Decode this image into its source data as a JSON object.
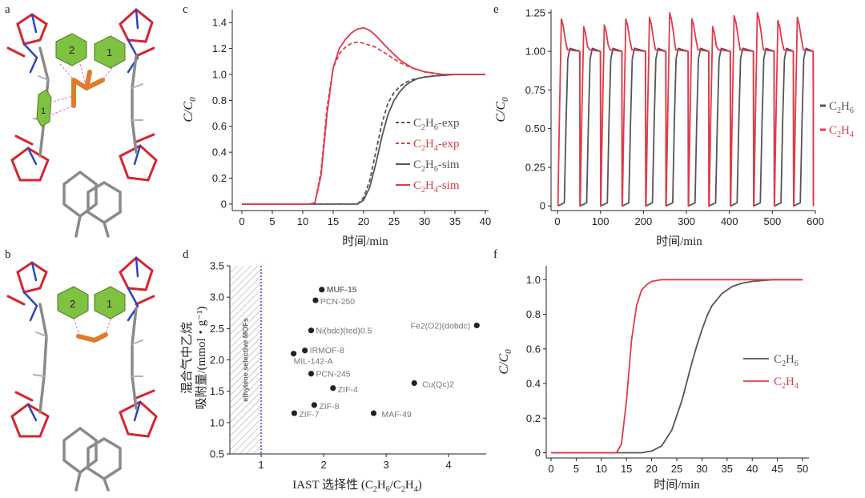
{
  "panels": {
    "a": {
      "letter": "a",
      "ring_labels": [
        "2",
        "1",
        "1"
      ],
      "depiction": "crystal-structure-ethane-binding"
    },
    "b": {
      "letter": "b",
      "ring_labels": [
        "2",
        "1"
      ],
      "depiction": "crystal-structure-ethylene-binding"
    }
  },
  "colors": {
    "ethane": "#555555",
    "ethylene": "#e03a4a",
    "mof": "#d9e8f5",
    "highlight": "#e02530"
  },
  "chart_data": [
    {
      "id": "c",
      "type": "line",
      "letter": "c",
      "xlabel": "时间/min",
      "ylabel": "C/C0",
      "xlim": [
        0,
        40
      ],
      "ylim": [
        -0.05,
        1.5
      ],
      "xticks": [
        "0",
        "5",
        "10",
        "15",
        "20",
        "25",
        "30",
        "35",
        "40"
      ],
      "yticks": [
        "0",
        "0.2",
        "0.4",
        "0.6",
        "0.8",
        "1.0",
        "1.2",
        "1.4"
      ],
      "legend": [
        {
          "name": "C2H6-exp",
          "main": "C",
          "sub1": "2",
          "mid": "H",
          "sub2": "6",
          "suffix": "-exp",
          "color": "#555555",
          "dash": true
        },
        {
          "name": "C2H4-exp",
          "main": "C",
          "sub1": "2",
          "mid": "H",
          "sub2": "4",
          "suffix": "-exp",
          "color": "#e03a4a",
          "dash": true
        },
        {
          "name": "C2H6-sim",
          "main": "C",
          "sub1": "2",
          "mid": "H",
          "sub2": "6",
          "suffix": "-sim",
          "color": "#555555",
          "dash": false
        },
        {
          "name": "C2H4-sim",
          "main": "C",
          "sub1": "2",
          "mid": "H",
          "sub2": "4",
          "suffix": "-sim",
          "color": "#e03a4a",
          "dash": false
        }
      ],
      "series": [
        {
          "name": "C2H6-exp",
          "color": "#555555",
          "dash": true,
          "x": [
            0,
            10,
            19,
            20,
            21,
            22,
            23,
            24,
            25,
            26,
            27,
            28,
            30,
            32,
            35,
            40
          ],
          "y": [
            0,
            0,
            0,
            0.05,
            0.18,
            0.4,
            0.62,
            0.78,
            0.86,
            0.91,
            0.94,
            0.96,
            0.98,
            0.99,
            1.0,
            1.0
          ]
        },
        {
          "name": "C2H4-exp",
          "color": "#e03a4a",
          "dash": true,
          "x": [
            0,
            11,
            12,
            13,
            14,
            15,
            16,
            17,
            18,
            19,
            20,
            22,
            24,
            26,
            28,
            30,
            33,
            36,
            40
          ],
          "y": [
            0,
            0,
            0.01,
            0.25,
            0.75,
            1.05,
            1.16,
            1.21,
            1.24,
            1.25,
            1.24,
            1.21,
            1.15,
            1.09,
            1.05,
            1.02,
            1.0,
            1.0,
            1.0
          ]
        },
        {
          "name": "C2H6-sim",
          "color": "#555555",
          "dash": false,
          "x": [
            0,
            10,
            19,
            20,
            21,
            22,
            23,
            24,
            25,
            26,
            27,
            28,
            29,
            30,
            32,
            35,
            40
          ],
          "y": [
            0,
            0,
            0,
            0.03,
            0.13,
            0.31,
            0.52,
            0.69,
            0.8,
            0.87,
            0.92,
            0.95,
            0.97,
            0.98,
            0.99,
            1.0,
            1.0
          ]
        },
        {
          "name": "C2H4-sim",
          "color": "#e03a4a",
          "dash": false,
          "x": [
            0,
            11,
            12,
            13,
            14,
            15,
            16,
            17,
            18,
            19,
            20,
            21,
            22,
            24,
            26,
            28,
            30,
            33,
            36,
            40
          ],
          "y": [
            0,
            0,
            0.01,
            0.22,
            0.7,
            1.05,
            1.2,
            1.27,
            1.32,
            1.35,
            1.36,
            1.34,
            1.3,
            1.2,
            1.11,
            1.05,
            1.02,
            1.0,
            1.0,
            1.0
          ]
        }
      ]
    },
    {
      "id": "d",
      "type": "scatter",
      "letter": "d",
      "xlabel": "IAST 选择性 (C2H6/C2H4)",
      "ylabel_line1": "混合气中乙烷",
      "ylabel_line2": "吸附量/(mmol・g⁻¹)",
      "xlim": [
        0.5,
        4.6
      ],
      "ylim": [
        0.5,
        3.5
      ],
      "xticks": [
        "1",
        "2",
        "3",
        "4"
      ],
      "yticks": [
        "0.5",
        "1.0",
        "1.5",
        "2.0",
        "2.5",
        "3.0",
        "3.5"
      ],
      "shaded_region_label": "ethylene selective MOFs",
      "divider_x": 1.0,
      "points": [
        {
          "label": "MUF-15",
          "x": 1.97,
          "y": 3.12,
          "highlight": true
        },
        {
          "label": "PCN-250",
          "x": 1.87,
          "y": 2.95
        },
        {
          "label": "Ni(bdc)(ted)0.5",
          "x": 1.8,
          "y": 2.47
        },
        {
          "label": "IRMOF-8",
          "x": 1.7,
          "y": 2.15
        },
        {
          "label": "MIL-142-A",
          "x": 1.52,
          "y": 2.1
        },
        {
          "label": "PCN-245",
          "x": 1.8,
          "y": 1.78
        },
        {
          "label": "ZIF-4",
          "x": 2.15,
          "y": 1.55
        },
        {
          "label": "ZIF-8",
          "x": 1.85,
          "y": 1.28
        },
        {
          "label": "ZIF-7",
          "x": 1.53,
          "y": 1.15
        },
        {
          "label": "MAF-49",
          "x": 2.8,
          "y": 1.15
        },
        {
          "label": "Cu(Qc)2",
          "x": 3.45,
          "y": 1.63
        },
        {
          "label": "Fe2(O2)(dobdc)",
          "x": 4.45,
          "y": 2.55
        }
      ]
    },
    {
      "id": "e",
      "type": "line",
      "letter": "e",
      "xlabel": "时间/min",
      "ylabel": "C/C0",
      "xlim": [
        -15,
        600
      ],
      "ylim": [
        -0.03,
        1.27
      ],
      "xticks": [
        "0",
        "100",
        "200",
        "300",
        "400",
        "500",
        "600"
      ],
      "yticks": [
        "0",
        "0.25",
        "0.50",
        "0.75",
        "1.00",
        "1.25"
      ],
      "cycle_starts": [
        1,
        53,
        101,
        151,
        206,
        253,
        305,
        353,
        403,
        457,
        505,
        550
      ],
      "c2h4_peaks": [
        1.21,
        1.16,
        1.17,
        1.21,
        1.22,
        1.25,
        1.21,
        1.16,
        1.23,
        1.25,
        1.2,
        1.22
      ],
      "legend": [
        {
          "name": "C2H6",
          "main": "C",
          "sub1": "2",
          "mid": "H",
          "sub2": "6",
          "color": "#555555"
        },
        {
          "name": "C2H4",
          "main": "C",
          "sub1": "2",
          "mid": "H",
          "sub2": "4",
          "color": "#e03a4a"
        }
      ]
    },
    {
      "id": "f",
      "type": "line",
      "letter": "f",
      "xlabel": "时间/min",
      "ylabel": "C/C0",
      "xlim": [
        0,
        50
      ],
      "ylim": [
        -0.03,
        1.08
      ],
      "xticks": [
        "0",
        "5",
        "10",
        "15",
        "20",
        "25",
        "30",
        "35",
        "40",
        "45",
        "50"
      ],
      "yticks": [
        "0",
        "0.2",
        "0.4",
        "0.6",
        "0.8",
        "1.0"
      ],
      "legend": [
        {
          "name": "C2H6",
          "main": "C",
          "sub1": "2",
          "mid": "H",
          "sub2": "6",
          "color": "#555555"
        },
        {
          "name": "C2H4",
          "main": "C",
          "sub1": "2",
          "mid": "H",
          "sub2": "4",
          "color": "#e03a4a"
        }
      ],
      "series": [
        {
          "name": "C2H6",
          "color": "#555555",
          "x": [
            0,
            18,
            20,
            22,
            24,
            26,
            27,
            28,
            29,
            30,
            31,
            32,
            34,
            36,
            38,
            40,
            44,
            50
          ],
          "y": [
            0,
            0,
            0.01,
            0.04,
            0.13,
            0.3,
            0.41,
            0.52,
            0.62,
            0.71,
            0.79,
            0.85,
            0.92,
            0.96,
            0.98,
            0.99,
            1.0,
            1.0
          ]
        },
        {
          "name": "C2H4",
          "color": "#e03a4a",
          "x": [
            0,
            13,
            14,
            15,
            16,
            17,
            18,
            19,
            20,
            22,
            25,
            30,
            50
          ],
          "y": [
            0,
            0,
            0.05,
            0.3,
            0.65,
            0.85,
            0.94,
            0.97,
            0.99,
            1.0,
            1.0,
            1.0,
            1.0
          ]
        }
      ]
    }
  ]
}
